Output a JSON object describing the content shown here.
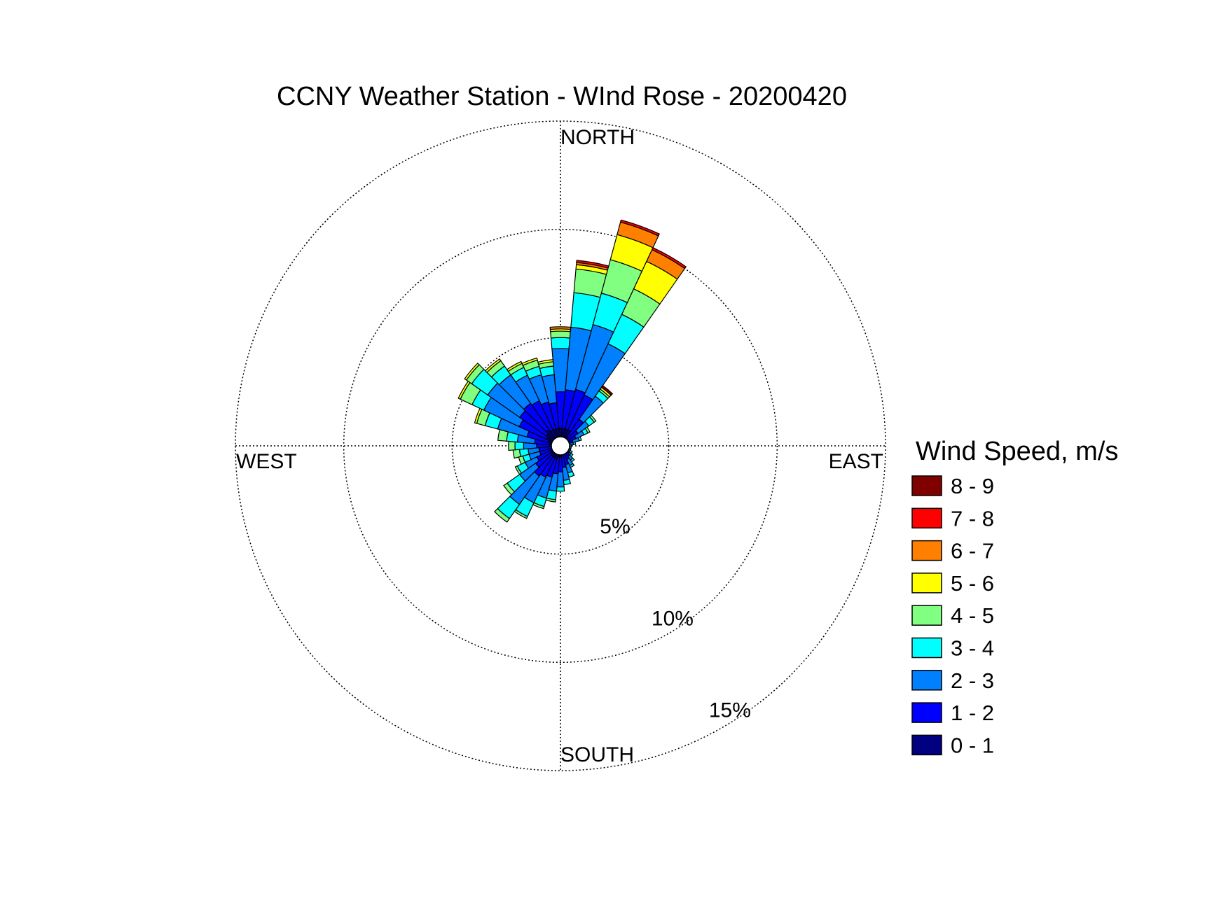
{
  "chart_data": {
    "type": "wind-rose",
    "title": "CCNY Weather Station - WInd Rose - 20200420",
    "directions": {
      "north": "NORTH",
      "south": "SOUTH",
      "east": "EAST",
      "west": "WEST"
    },
    "rings": [
      {
        "value": 5,
        "label": "5%"
      },
      {
        "value": 10,
        "label": "10%"
      },
      {
        "value": 15,
        "label": "15%"
      }
    ],
    "rmax": 15,
    "sector_width_deg": 10,
    "legend_title": "Wind Speed, m/s",
    "bins": [
      {
        "label": "0 - 1",
        "color": "#000080"
      },
      {
        "label": "1 - 2",
        "color": "#0000ff"
      },
      {
        "label": "2 - 3",
        "color": "#0080ff"
      },
      {
        "label": "3 - 4",
        "color": "#00ffff"
      },
      {
        "label": "4 - 5",
        "color": "#80ff80"
      },
      {
        "label": "5 - 6",
        "color": "#ffff00"
      },
      {
        "label": "6 - 7",
        "color": "#ff8000"
      },
      {
        "label": "7 - 8",
        "color": "#ff0000"
      },
      {
        "label": "8 - 9",
        "color": "#800000"
      }
    ],
    "sectors": [
      {
        "dir": 0,
        "cum": [
          0.8,
          2.5,
          4.5,
          5.0,
          5.3,
          5.4,
          5.5,
          5.5,
          5.5
        ]
      },
      {
        "dir": 10,
        "cum": [
          0.8,
          2.6,
          5.5,
          7.1,
          8.2,
          8.4,
          8.5,
          8.6,
          8.6
        ]
      },
      {
        "dir": 20,
        "cum": [
          0.8,
          2.7,
          5.8,
          7.3,
          8.9,
          10.1,
          10.7,
          10.8,
          10.8
        ]
      },
      {
        "dir": 30,
        "cum": [
          0.8,
          2.6,
          5.2,
          6.7,
          8.0,
          9.4,
          10.0,
          10.1,
          10.1
        ]
      },
      {
        "dir": 40,
        "cum": [
          0.5,
          1.5,
          2.8,
          3.1,
          3.2,
          3.3,
          3.3,
          3.3,
          3.4
        ]
      },
      {
        "dir": 50,
        "cum": [
          0.4,
          1.0,
          1.6,
          1.9,
          2.0,
          2.0,
          2.0,
          2.0,
          2.0
        ]
      },
      {
        "dir": 60,
        "cum": [
          0.3,
          0.8,
          1.2,
          1.4,
          1.5,
          1.5,
          1.5,
          1.5,
          1.5
        ]
      },
      {
        "dir": 70,
        "cum": [
          0.3,
          0.6,
          0.9,
          1.0,
          1.0,
          1.0,
          1.0,
          1.0,
          1.0
        ]
      },
      {
        "dir": 80,
        "cum": [
          0.2,
          0.4,
          0.6,
          0.7,
          0.7,
          0.7,
          0.7,
          0.7,
          0.7
        ]
      },
      {
        "dir": 90,
        "cum": [
          0.2,
          0.4,
          0.5,
          0.5,
          0.5,
          0.5,
          0.5,
          0.5,
          0.5
        ]
      },
      {
        "dir": 100,
        "cum": [
          0.2,
          0.4,
          0.5,
          0.5,
          0.5,
          0.5,
          0.5,
          0.5,
          0.5
        ]
      },
      {
        "dir": 110,
        "cum": [
          0.2,
          0.4,
          0.5,
          0.5,
          0.5,
          0.5,
          0.5,
          0.5,
          0.5
        ]
      },
      {
        "dir": 120,
        "cum": [
          0.2,
          0.4,
          0.5,
          0.6,
          0.6,
          0.6,
          0.6,
          0.6,
          0.6
        ]
      },
      {
        "dir": 130,
        "cum": [
          0.2,
          0.5,
          0.6,
          0.7,
          0.7,
          0.7,
          0.7,
          0.7,
          0.7
        ]
      },
      {
        "dir": 140,
        "cum": [
          0.3,
          0.6,
          0.8,
          0.9,
          0.9,
          0.9,
          0.9,
          0.9,
          0.9
        ]
      },
      {
        "dir": 150,
        "cum": [
          0.3,
          0.7,
          1.0,
          1.1,
          1.1,
          1.1,
          1.1,
          1.1,
          1.1
        ]
      },
      {
        "dir": 160,
        "cum": [
          0.4,
          0.9,
          1.3,
          1.5,
          1.5,
          1.5,
          1.5,
          1.5,
          1.5
        ]
      },
      {
        "dir": 170,
        "cum": [
          0.4,
          1.0,
          1.6,
          1.8,
          1.8,
          1.8,
          1.8,
          1.8,
          1.8
        ]
      },
      {
        "dir": 180,
        "cum": [
          0.5,
          1.2,
          1.9,
          2.1,
          2.1,
          2.1,
          2.1,
          2.1,
          2.1
        ]
      },
      {
        "dir": 190,
        "cum": [
          0.5,
          1.3,
          2.1,
          2.5,
          2.6,
          2.6,
          2.6,
          2.6,
          2.6
        ]
      },
      {
        "dir": 200,
        "cum": [
          0.6,
          1.5,
          2.5,
          2.9,
          3.0,
          3.0,
          3.0,
          3.0,
          3.0
        ]
      },
      {
        "dir": 210,
        "cum": [
          0.6,
          1.6,
          2.9,
          3.6,
          3.7,
          3.7,
          3.7,
          3.7,
          3.7
        ]
      },
      {
        "dir": 220,
        "cum": [
          0.6,
          1.7,
          3.3,
          4.1,
          4.3,
          4.3,
          4.3,
          4.3,
          4.3
        ]
      },
      {
        "dir": 230,
        "cum": [
          0.5,
          1.4,
          2.3,
          3.0,
          3.2,
          3.2,
          3.2,
          3.2,
          3.2
        ]
      },
      {
        "dir": 240,
        "cum": [
          0.5,
          1.2,
          1.8,
          2.2,
          2.3,
          2.3,
          2.3,
          2.3,
          2.3
        ]
      },
      {
        "dir": 250,
        "cum": [
          0.4,
          1.0,
          1.5,
          1.8,
          2.0,
          2.0,
          2.0,
          2.0,
          2.0
        ]
      },
      {
        "dir": 260,
        "cum": [
          0.4,
          1.0,
          1.5,
          1.9,
          2.2,
          2.2,
          2.2,
          2.2,
          2.2
        ]
      },
      {
        "dir": 270,
        "cum": [
          0.5,
          1.1,
          1.7,
          2.1,
          2.4,
          2.4,
          2.4,
          2.4,
          2.4
        ]
      },
      {
        "dir": 280,
        "cum": [
          0.5,
          1.2,
          2.0,
          2.5,
          2.9,
          2.9,
          2.9,
          2.9,
          2.9
        ]
      },
      {
        "dir": 290,
        "cum": [
          0.6,
          1.6,
          3.0,
          3.6,
          4.0,
          4.1,
          4.1,
          4.1,
          4.1
        ]
      },
      {
        "dir": 300,
        "cum": [
          0.7,
          2.1,
          3.9,
          4.5,
          5.1,
          5.2,
          5.2,
          5.2,
          5.2
        ]
      },
      {
        "dir": 310,
        "cum": [
          0.8,
          2.3,
          4.1,
          5.0,
          5.3,
          5.4,
          5.4,
          5.4,
          5.4
        ]
      },
      {
        "dir": 320,
        "cum": [
          0.9,
          2.4,
          4.0,
          4.5,
          4.8,
          4.9,
          4.9,
          4.9,
          4.9
        ]
      },
      {
        "dir": 330,
        "cum": [
          0.8,
          2.3,
          3.6,
          4.0,
          4.2,
          4.3,
          4.3,
          4.3,
          4.3
        ]
      },
      {
        "dir": 340,
        "cum": [
          0.8,
          2.1,
          3.4,
          3.8,
          4.1,
          4.2,
          4.2,
          4.2,
          4.2
        ]
      },
      {
        "dir": 350,
        "cum": [
          0.8,
          2.0,
          3.3,
          3.7,
          3.9,
          4.0,
          4.0,
          4.0,
          4.0
        ]
      }
    ]
  }
}
